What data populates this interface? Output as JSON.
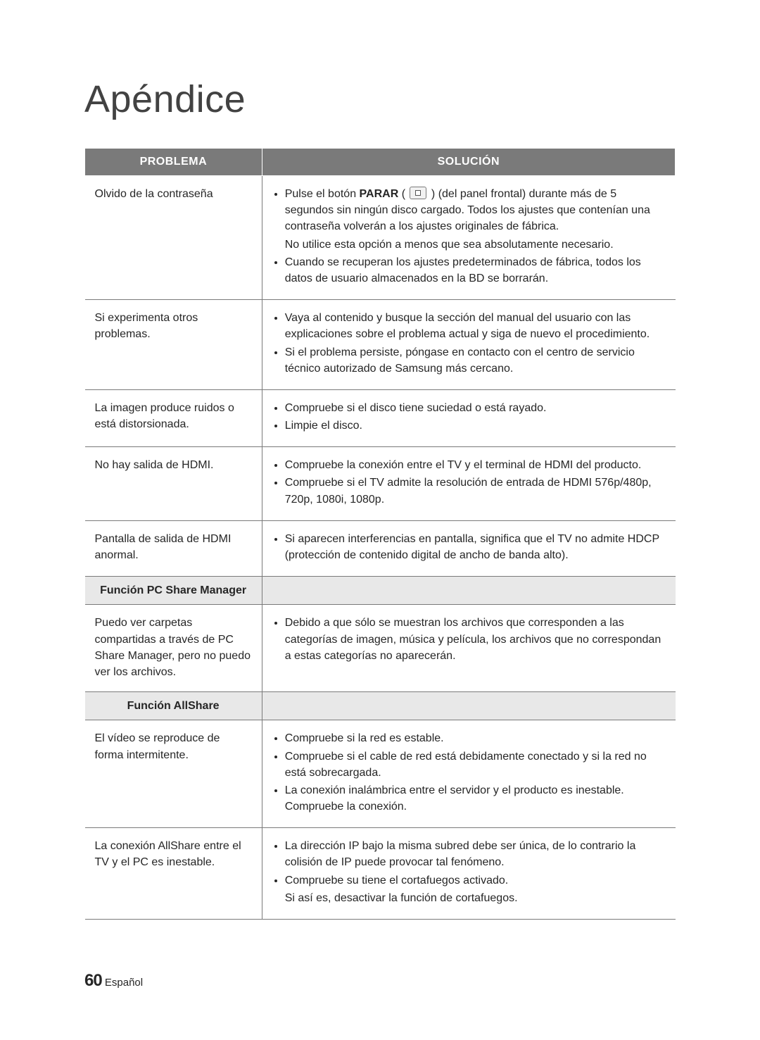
{
  "page": {
    "title": "Apéndice",
    "footer_pagenum": "60",
    "footer_lang": "Español"
  },
  "colors": {
    "header_bg": "#7a7a7a",
    "header_fg": "#ffffff",
    "section_bg": "#e8e8e8",
    "border": "#7a7a7a",
    "text": "#262626",
    "title": "#424242"
  },
  "table": {
    "headers": {
      "problem": "PROBLEMA",
      "solution": "SOLUCIÓN"
    },
    "sections": {
      "pc_share": "Función PC Share Manager",
      "allshare": "Función AllShare"
    },
    "rows": [
      {
        "problem": "Olvido de la contraseña",
        "solution": [
          {
            "html": "Pulse el botón <b>PARAR</b> ( <span class=\"stop-icon\" data-name=\"stop-icon\" data-interactable=\"false\"></span> ) (del panel frontal) durante más de 5 segundos sin ningún disco cargado. Todos los ajustes que contenían una contraseña volverán a los ajustes originales de fábrica.<div class=\"sol-plain\">No utilice esta opción a menos que sea absolutamente necesario.</div>"
          },
          {
            "text": "Cuando se recuperan los ajustes predeterminados de fábrica, todos los datos de usuario almacenados en la BD se borrarán."
          }
        ]
      },
      {
        "problem": "Si experimenta otros problemas.",
        "solution": [
          {
            "text": "Vaya al contenido y busque la sección del manual del usuario con las explicaciones sobre el problema actual y siga de nuevo el procedimiento."
          },
          {
            "text": "Si el problema persiste, póngase en contacto con el centro de servicio técnico autorizado de Samsung más cercano."
          }
        ]
      },
      {
        "problem": "La imagen produce ruidos o está distorsionada.",
        "solution": [
          {
            "text": "Compruebe si el disco tiene suciedad o está rayado."
          },
          {
            "text": "Limpie el disco."
          }
        ]
      },
      {
        "problem": "No hay salida de HDMI.",
        "solution": [
          {
            "text": "Compruebe la conexión entre el TV y el terminal de HDMI del producto."
          },
          {
            "text": "Compruebe si el TV admite la resolución de entrada de HDMI 576p/480p, 720p, 1080i, 1080p."
          }
        ]
      },
      {
        "problem": "Pantalla de salida de HDMI anormal.",
        "solution": [
          {
            "text": "Si aparecen interferencias en pantalla, significa que el TV no admite HDCP (protección de contenido digital de ancho de banda alto)."
          }
        ]
      },
      {
        "section": "pc_share"
      },
      {
        "problem": "Puedo ver carpetas compartidas a través de PC Share Manager, pero no puedo ver los archivos.",
        "solution": [
          {
            "text": "Debido a que sólo se muestran los archivos que corresponden a las categorías de imagen, música y película, los archivos que no correspondan a estas categorías no aparecerán."
          }
        ]
      },
      {
        "section": "allshare"
      },
      {
        "problem": "El vídeo se reproduce de forma intermitente.",
        "solution": [
          {
            "text": "Compruebe si la red es estable."
          },
          {
            "text": "Compruebe si el cable de red está debidamente conectado y si la red no está sobrecargada."
          },
          {
            "text": "La conexión inalámbrica entre el servidor y el producto es inestable. Compruebe la conexión."
          }
        ]
      },
      {
        "problem": "La conexión AllShare entre el TV y el PC es inestable.",
        "solution": [
          {
            "text": "La dirección IP bajo la misma subred debe ser única, de lo contrario la colisión de IP puede provocar tal fenómeno."
          },
          {
            "html": "Compruebe su tiene el cortafuegos activado.<div class=\"sol-plain\">Si así es, desactivar la función de cortafuegos.</div>"
          }
        ]
      }
    ]
  }
}
